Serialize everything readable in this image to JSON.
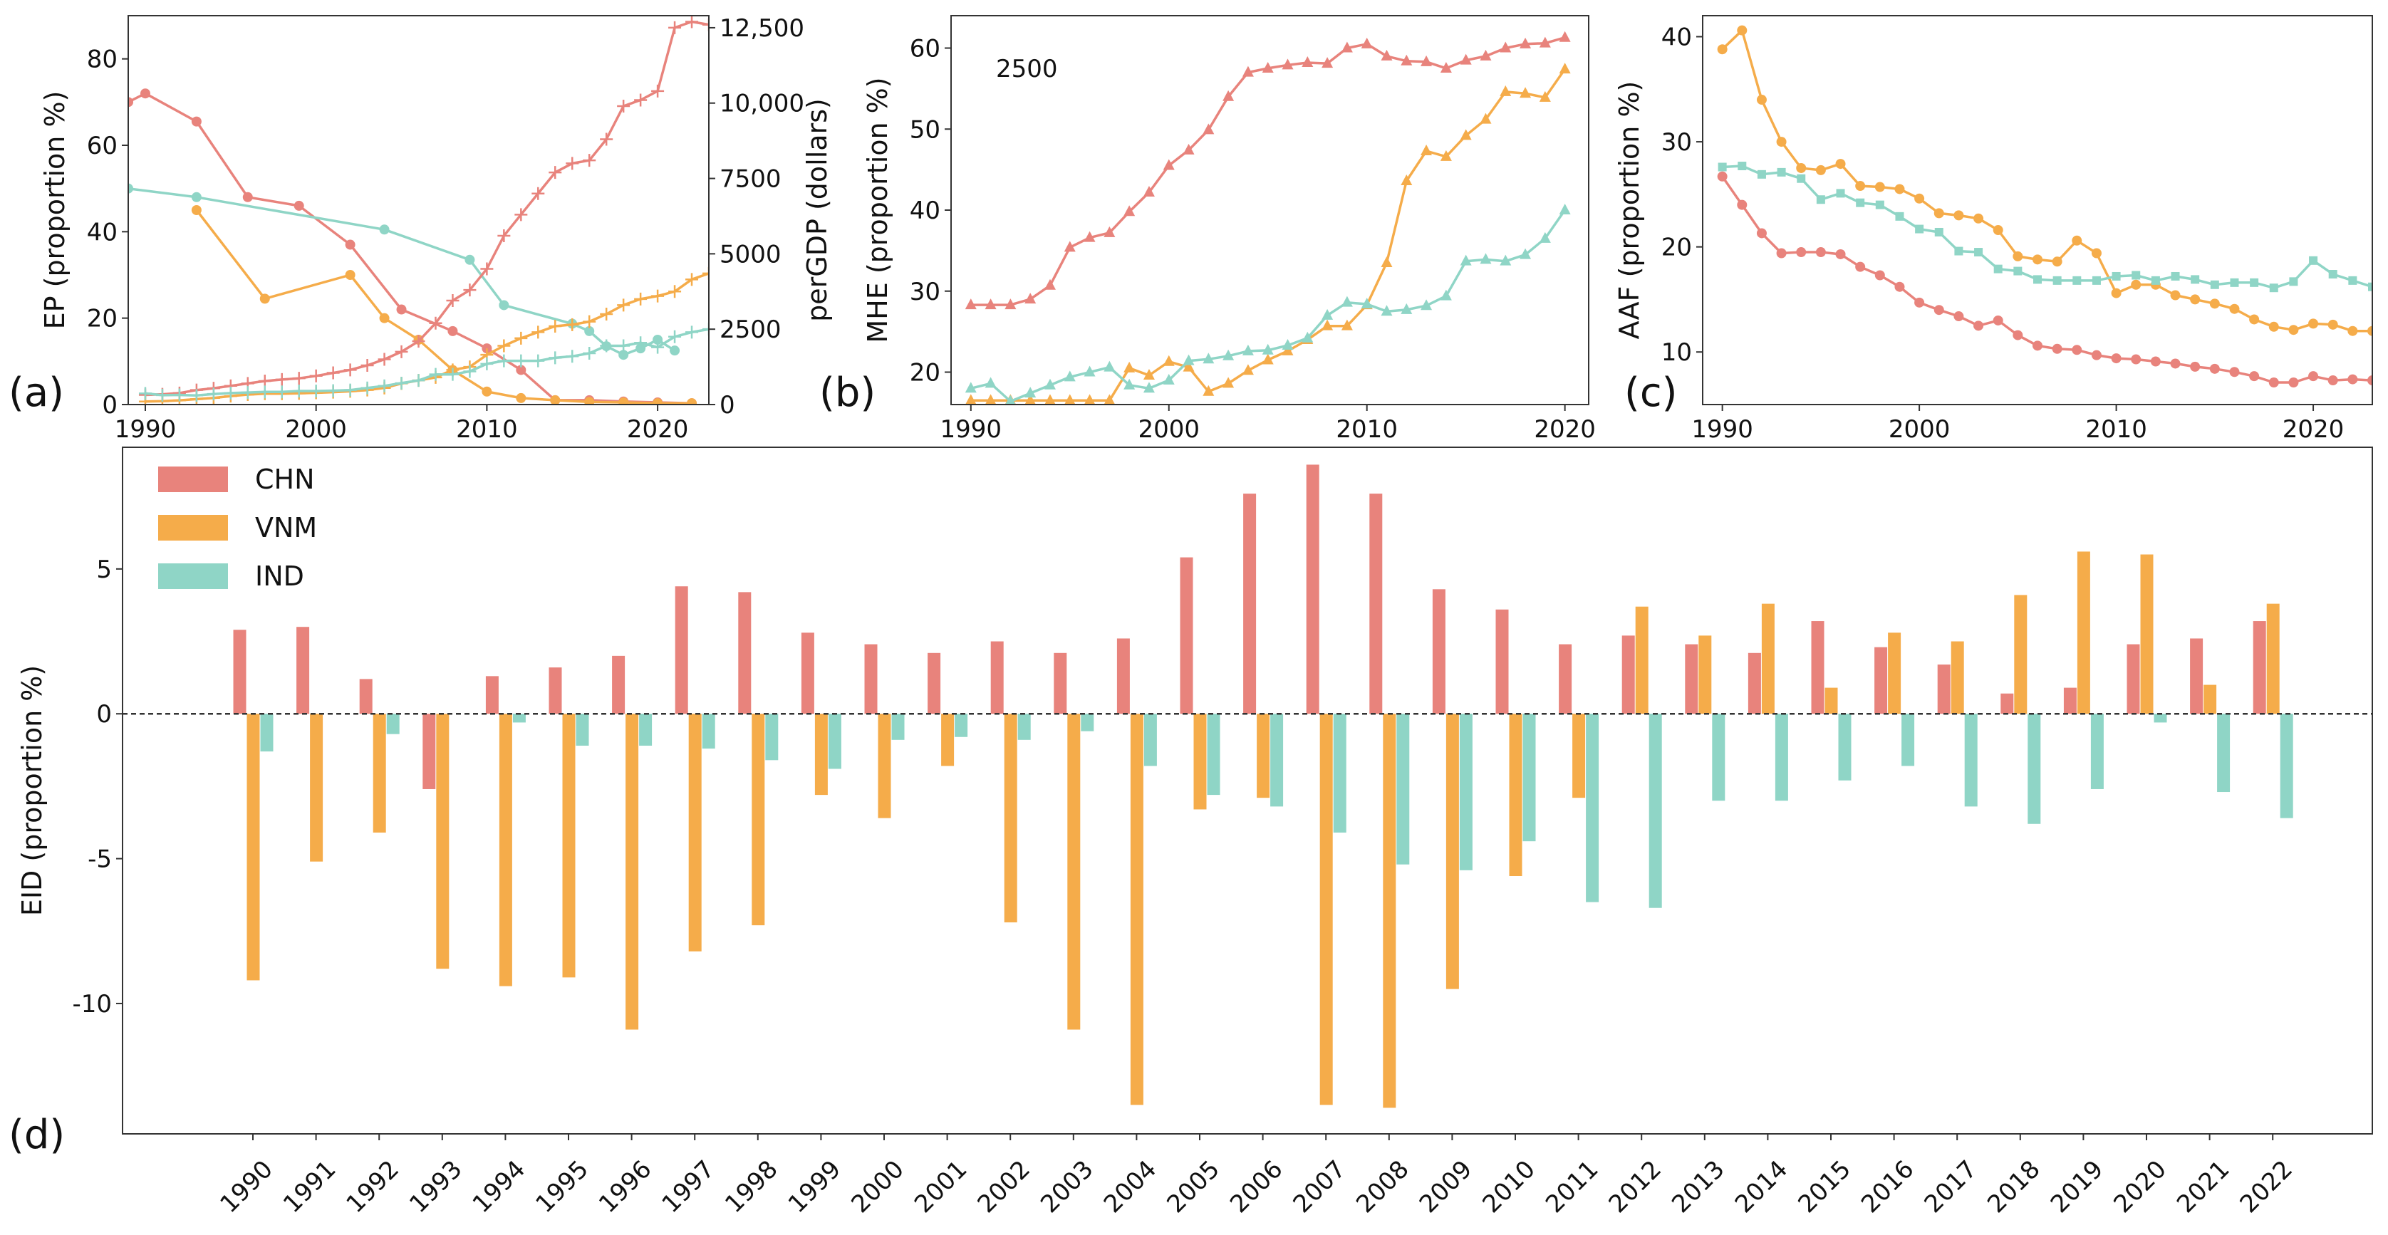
{
  "colors": {
    "CHN": "#E8837C",
    "VNM": "#F5AC4A",
    "IND": "#8FD5C6",
    "axis": "#333333",
    "zero_line": "#333333"
  },
  "chart_data": [
    {
      "id": "a",
      "panel_label": "(a)",
      "type": "line",
      "ylabel": "EP (proportion %)",
      "ylabel_right": "perGDP (dollars)",
      "xlim": [
        1989,
        2023
      ],
      "ylim": [
        0,
        90
      ],
      "ylim_right": [
        0,
        12900
      ],
      "xticks": [
        1990,
        2000,
        2010,
        2020
      ],
      "yticks": [
        0,
        20,
        40,
        60,
        80
      ],
      "yticks_right": [
        0,
        2500,
        5000,
        7500,
        10000,
        12500
      ],
      "yticks_right_labels": [
        "0",
        "2500",
        "5000",
        "7500",
        "10,000",
        "12,500"
      ],
      "series": [
        {
          "name": "CHN",
          "axis": "left",
          "marker": "circle",
          "x": [
            1989,
            1990,
            1993,
            1996,
            1999,
            2002,
            2005,
            2008,
            2010,
            2012,
            2014,
            2016,
            2018,
            2020,
            2022
          ],
          "y": [
            70,
            72,
            65.5,
            48,
            46,
            37,
            22,
            17,
            13,
            8,
            1,
            1,
            0.7,
            0.5,
            0.3
          ]
        },
        {
          "name": "VNM",
          "axis": "left",
          "marker": "circle",
          "x": [
            1993,
            1997,
            2002,
            2004,
            2006,
            2008,
            2010,
            2012,
            2014,
            2016,
            2018,
            2020,
            2022
          ],
          "y": [
            45,
            24.5,
            30,
            20,
            15,
            8,
            3,
            1.5,
            1,
            0.6,
            0.5,
            0.3,
            0.3
          ]
        },
        {
          "name": "IND",
          "axis": "left",
          "marker": "circle",
          "x": [
            1989,
            1993,
            2004,
            2009,
            2011,
            2015,
            2016,
            2017,
            2018,
            2019,
            2020,
            2021
          ],
          "y": [
            50,
            48,
            40.5,
            33.5,
            23,
            18.7,
            17,
            13.5,
            11.5,
            13,
            15,
            12.5
          ]
        },
        {
          "name": "CHN",
          "axis": "right",
          "marker": "plus",
          "x": [
            1990,
            1991,
            1992,
            1993,
            1994,
            1995,
            1996,
            1997,
            1998,
            1999,
            2000,
            2001,
            2002,
            2003,
            2004,
            2005,
            2006,
            2007,
            2008,
            2009,
            2010,
            2011,
            2012,
            2013,
            2014,
            2015,
            2016,
            2017,
            2018,
            2019,
            2020,
            2021,
            2022,
            2023
          ],
          "y": [
            320,
            340,
            380,
            480,
            540,
            620,
            700,
            780,
            830,
            870,
            950,
            1050,
            1150,
            1300,
            1500,
            1750,
            2100,
            2700,
            3450,
            3800,
            4500,
            5600,
            6300,
            7000,
            7700,
            8000,
            8100,
            8800,
            9900,
            10100,
            10400,
            12500,
            12700,
            12600
          ]
        },
        {
          "name": "VNM",
          "axis": "right",
          "marker": "plus",
          "x": [
            1990,
            1991,
            1992,
            1993,
            1994,
            1995,
            1996,
            1997,
            1998,
            1999,
            2000,
            2001,
            2002,
            2003,
            2004,
            2005,
            2006,
            2007,
            2008,
            2009,
            2010,
            2011,
            2012,
            2013,
            2014,
            2015,
            2016,
            2017,
            2018,
            2019,
            2020,
            2021,
            2022,
            2023
          ],
          "y": [
            100,
            110,
            140,
            180,
            220,
            280,
            330,
            360,
            360,
            370,
            390,
            410,
            440,
            480,
            550,
            700,
            800,
            900,
            1150,
            1250,
            1650,
            1950,
            2200,
            2400,
            2600,
            2650,
            2750,
            3000,
            3300,
            3500,
            3600,
            3750,
            4150,
            4350
          ]
        },
        {
          "name": "IND",
          "axis": "right",
          "marker": "plus",
          "x": [
            1990,
            1991,
            1992,
            1993,
            1994,
            1995,
            1996,
            1997,
            1998,
            1999,
            2000,
            2001,
            2002,
            2003,
            2004,
            2005,
            2006,
            2007,
            2008,
            2009,
            2010,
            2011,
            2012,
            2013,
            2014,
            2015,
            2016,
            2017,
            2018,
            2019,
            2020,
            2021,
            2022,
            2023
          ],
          "y": [
            370,
            310,
            320,
            300,
            350,
            380,
            400,
            420,
            420,
            450,
            450,
            460,
            480,
            550,
            620,
            710,
            800,
            1000,
            1000,
            1100,
            1350,
            1450,
            1450,
            1450,
            1550,
            1600,
            1700,
            1950,
            1950,
            2050,
            1900,
            2250,
            2400,
            2500
          ]
        }
      ]
    },
    {
      "id": "b",
      "panel_label": "(b)",
      "type": "line",
      "ylabel": "MHE (proportion %)",
      "annotation": "2500",
      "xlim": [
        1989,
        2021.2
      ],
      "ylim": [
        16,
        64
      ],
      "xticks": [
        1990,
        2000,
        2010,
        2020
      ],
      "yticks": [
        20,
        30,
        40,
        50,
        60
      ],
      "x": [
        1990,
        1991,
        1992,
        1993,
        1994,
        1995,
        1996,
        1997,
        1998,
        1999,
        2000,
        2001,
        2002,
        2003,
        2004,
        2005,
        2006,
        2007,
        2008,
        2009,
        2010,
        2011,
        2012,
        2013,
        2014,
        2015,
        2016,
        2017,
        2018,
        2019,
        2020
      ],
      "series": [
        {
          "name": "CHN",
          "marker": "triangle",
          "values": [
            28.3,
            28.3,
            28.3,
            29,
            30.7,
            35.4,
            36.6,
            37.2,
            39.8,
            42.2,
            45.5,
            47.4,
            49.9,
            54,
            57,
            57.5,
            57.9,
            58.2,
            58.1,
            60,
            60.5,
            59,
            58.4,
            58.3,
            57.5,
            58.5,
            59,
            60,
            60.5,
            60.6,
            61.3
          ]
        },
        {
          "name": "VNM",
          "marker": "triangle",
          "values": [
            16.5,
            16.5,
            16.5,
            16.5,
            16.5,
            16.5,
            16.5,
            16.5,
            20.5,
            19.6,
            21.3,
            20.6,
            17.6,
            18.6,
            20.2,
            21.5,
            22.6,
            24,
            25.7,
            25.7,
            28.3,
            33.5,
            43.6,
            47.3,
            46.6,
            49.2,
            51.2,
            54.6,
            54.4,
            53.9,
            57.4
          ]
        },
        {
          "name": "IND",
          "marker": "triangle",
          "values": [
            18,
            18.6,
            16.4,
            17.4,
            18.4,
            19.4,
            20,
            20.6,
            18.4,
            18,
            19,
            21.4,
            21.6,
            22,
            22.6,
            22.7,
            23.3,
            24.2,
            27,
            28.6,
            28.4,
            27.5,
            27.7,
            28.2,
            29.4,
            33.7,
            33.9,
            33.7,
            34.5,
            36.5,
            40
          ]
        }
      ]
    },
    {
      "id": "c",
      "panel_label": "(c)",
      "type": "line",
      "ylabel": "AAF (proportion %)",
      "xlim": [
        1989,
        2023
      ],
      "ylim": [
        5,
        42
      ],
      "xticks": [
        1990,
        2000,
        2010,
        2020
      ],
      "yticks": [
        10,
        20,
        30,
        40
      ],
      "x": [
        1990,
        1991,
        1992,
        1993,
        1994,
        1995,
        1996,
        1997,
        1998,
        1999,
        2000,
        2001,
        2002,
        2003,
        2004,
        2005,
        2006,
        2007,
        2008,
        2009,
        2010,
        2011,
        2012,
        2013,
        2014,
        2015,
        2016,
        2017,
        2018,
        2019,
        2020,
        2021,
        2022,
        2023
      ],
      "series": [
        {
          "name": "CHN",
          "marker": "circle",
          "values": [
            26.7,
            24,
            21.3,
            19.4,
            19.5,
            19.5,
            19.3,
            18.1,
            17.3,
            16.2,
            14.7,
            14,
            13.4,
            12.5,
            13,
            11.6,
            10.6,
            10.3,
            10.2,
            9.7,
            9.4,
            9.3,
            9.1,
            8.9,
            8.6,
            8.4,
            8.1,
            7.7,
            7.1,
            7.1,
            7.7,
            7.3,
            7.4,
            7.3
          ]
        },
        {
          "name": "VNM",
          "marker": "circle",
          "values": [
            38.8,
            40.6,
            34,
            30,
            27.5,
            27.3,
            27.9,
            25.8,
            25.7,
            25.5,
            24.6,
            23.2,
            23,
            22.7,
            21.6,
            19.1,
            18.8,
            18.6,
            20.6,
            19.4,
            15.6,
            16.4,
            16.4,
            15.4,
            15,
            14.6,
            14.1,
            13.1,
            12.4,
            12.1,
            12.7,
            12.6,
            12,
            12
          ]
        },
        {
          "name": "IND",
          "marker": "square",
          "values": [
            27.6,
            27.7,
            26.9,
            27.1,
            26.5,
            24.5,
            25.1,
            24.2,
            24,
            22.9,
            21.7,
            21.4,
            19.6,
            19.5,
            17.9,
            17.7,
            16.9,
            16.8,
            16.8,
            16.8,
            17.2,
            17.3,
            16.8,
            17.2,
            16.9,
            16.4,
            16.6,
            16.6,
            16.1,
            16.7,
            18.7,
            17.4,
            16.8,
            16.2
          ]
        }
      ]
    },
    {
      "id": "d",
      "panel_label": "(d)",
      "type": "bar",
      "ylabel": "EID (proportion %)",
      "ylim": [
        -14.5,
        9.2
      ],
      "yticks": [
        -10,
        -5,
        0,
        5
      ],
      "legend": [
        "CHN",
        "VNM",
        "IND"
      ],
      "legend_position": "top-left",
      "categories": [
        "1990",
        "1991",
        "1992",
        "1993",
        "1994",
        "1995",
        "1996",
        "1997",
        "1998",
        "1999",
        "2000",
        "2001",
        "2002",
        "2003",
        "2004",
        "2005",
        "2006",
        "2007",
        "2008",
        "2009",
        "2010",
        "2011",
        "2012",
        "2013",
        "2014",
        "2015",
        "2016",
        "2017",
        "2018",
        "2019",
        "2020",
        "2021",
        "2022"
      ],
      "series": [
        {
          "name": "CHN",
          "values": [
            2.9,
            3.0,
            1.2,
            -2.6,
            1.3,
            1.6,
            2.0,
            4.4,
            4.2,
            2.8,
            2.4,
            2.1,
            2.5,
            2.1,
            2.6,
            5.4,
            7.6,
            8.6,
            7.6,
            4.3,
            3.6,
            2.4,
            2.7,
            2.4,
            2.1,
            3.2,
            2.3,
            1.7,
            0.7,
            0.9,
            2.4,
            2.6,
            3.2
          ]
        },
        {
          "name": "VNM",
          "values": [
            -9.2,
            -5.1,
            -4.1,
            -8.8,
            -9.4,
            -9.1,
            -10.9,
            -8.2,
            -7.3,
            -2.8,
            -3.6,
            -1.8,
            -7.2,
            -10.9,
            -13.5,
            -3.3,
            -2.9,
            -13.5,
            -13.6,
            -9.5,
            -5.6,
            -2.9,
            3.7,
            2.7,
            3.8,
            0.9,
            2.8,
            2.5,
            4.1,
            5.6,
            5.5,
            1.0,
            3.8
          ]
        },
        {
          "name": "IND",
          "values": [
            -1.3,
            0,
            -0.7,
            0,
            -0.3,
            -1.1,
            -1.1,
            -1.2,
            -1.6,
            -1.9,
            -0.9,
            -0.8,
            -0.9,
            -0.6,
            -1.8,
            -2.8,
            -3.2,
            -4.1,
            -5.2,
            -5.4,
            -4.4,
            -6.5,
            -6.7,
            -3.0,
            -3.0,
            -2.3,
            -1.8,
            -3.2,
            -3.8,
            -2.6,
            -0.3,
            -2.7,
            -3.6
          ]
        }
      ]
    }
  ]
}
